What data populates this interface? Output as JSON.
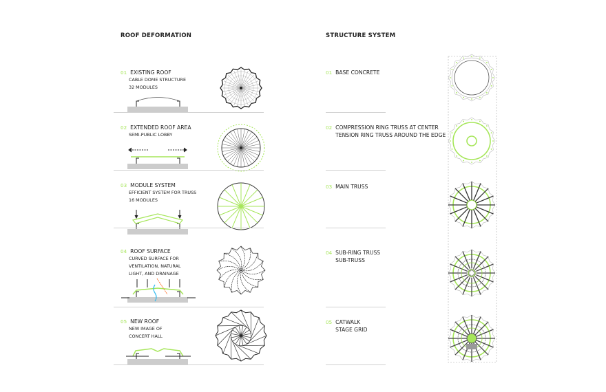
{
  "left": {
    "heading": "ROOF  DEFORMATION",
    "steps": [
      {
        "num": "01",
        "title": "EXISTING ROOF",
        "sub": [
          "CABLE DOME STRUCTURE",
          "32 MODULES"
        ]
      },
      {
        "num": "02",
        "title": "EXTENDED ROOF AREA",
        "sub": [
          "SEMI-PUBLIC LOBBY"
        ]
      },
      {
        "num": "03",
        "title": "MODULE SYSTEM",
        "sub": [
          "EFFICIENT SYSTEM FOR TRUSS",
          "16 MODULES"
        ]
      },
      {
        "num": "04",
        "title": "ROOF SURFACE",
        "sub": [
          "CURVED SURFACE FOR",
          "VENTILATION, NATURAL",
          "LIGHT, AND DRAINAGE"
        ]
      },
      {
        "num": "05",
        "title": "NEW ROOF",
        "sub": [
          "NEW IMAGE OF",
          "CONCERT HALL"
        ]
      }
    ]
  },
  "right": {
    "heading": "STRUCTURE SYSTEM",
    "steps": [
      {
        "num": "01",
        "lines": [
          "BASE CONCRETE"
        ]
      },
      {
        "num": "02",
        "lines": [
          "COMPRESSION RING TRUSS AT CENTER",
          "TENSION RING TRUSS AROUND THE EDGE"
        ]
      },
      {
        "num": "03",
        "lines": [
          "MAIN TRUSS"
        ]
      },
      {
        "num": "04",
        "lines": [
          "SUB-RING TRUSS",
          "SUB-TRUSS"
        ]
      },
      {
        "num": "05",
        "lines": [
          "CATWALK",
          "STAGE GRID"
        ]
      }
    ]
  },
  "colors": {
    "accent": "#a6e65a",
    "line": "#222222",
    "base": "#cccccc",
    "air": "#33bbee",
    "light": "#ff7733"
  }
}
